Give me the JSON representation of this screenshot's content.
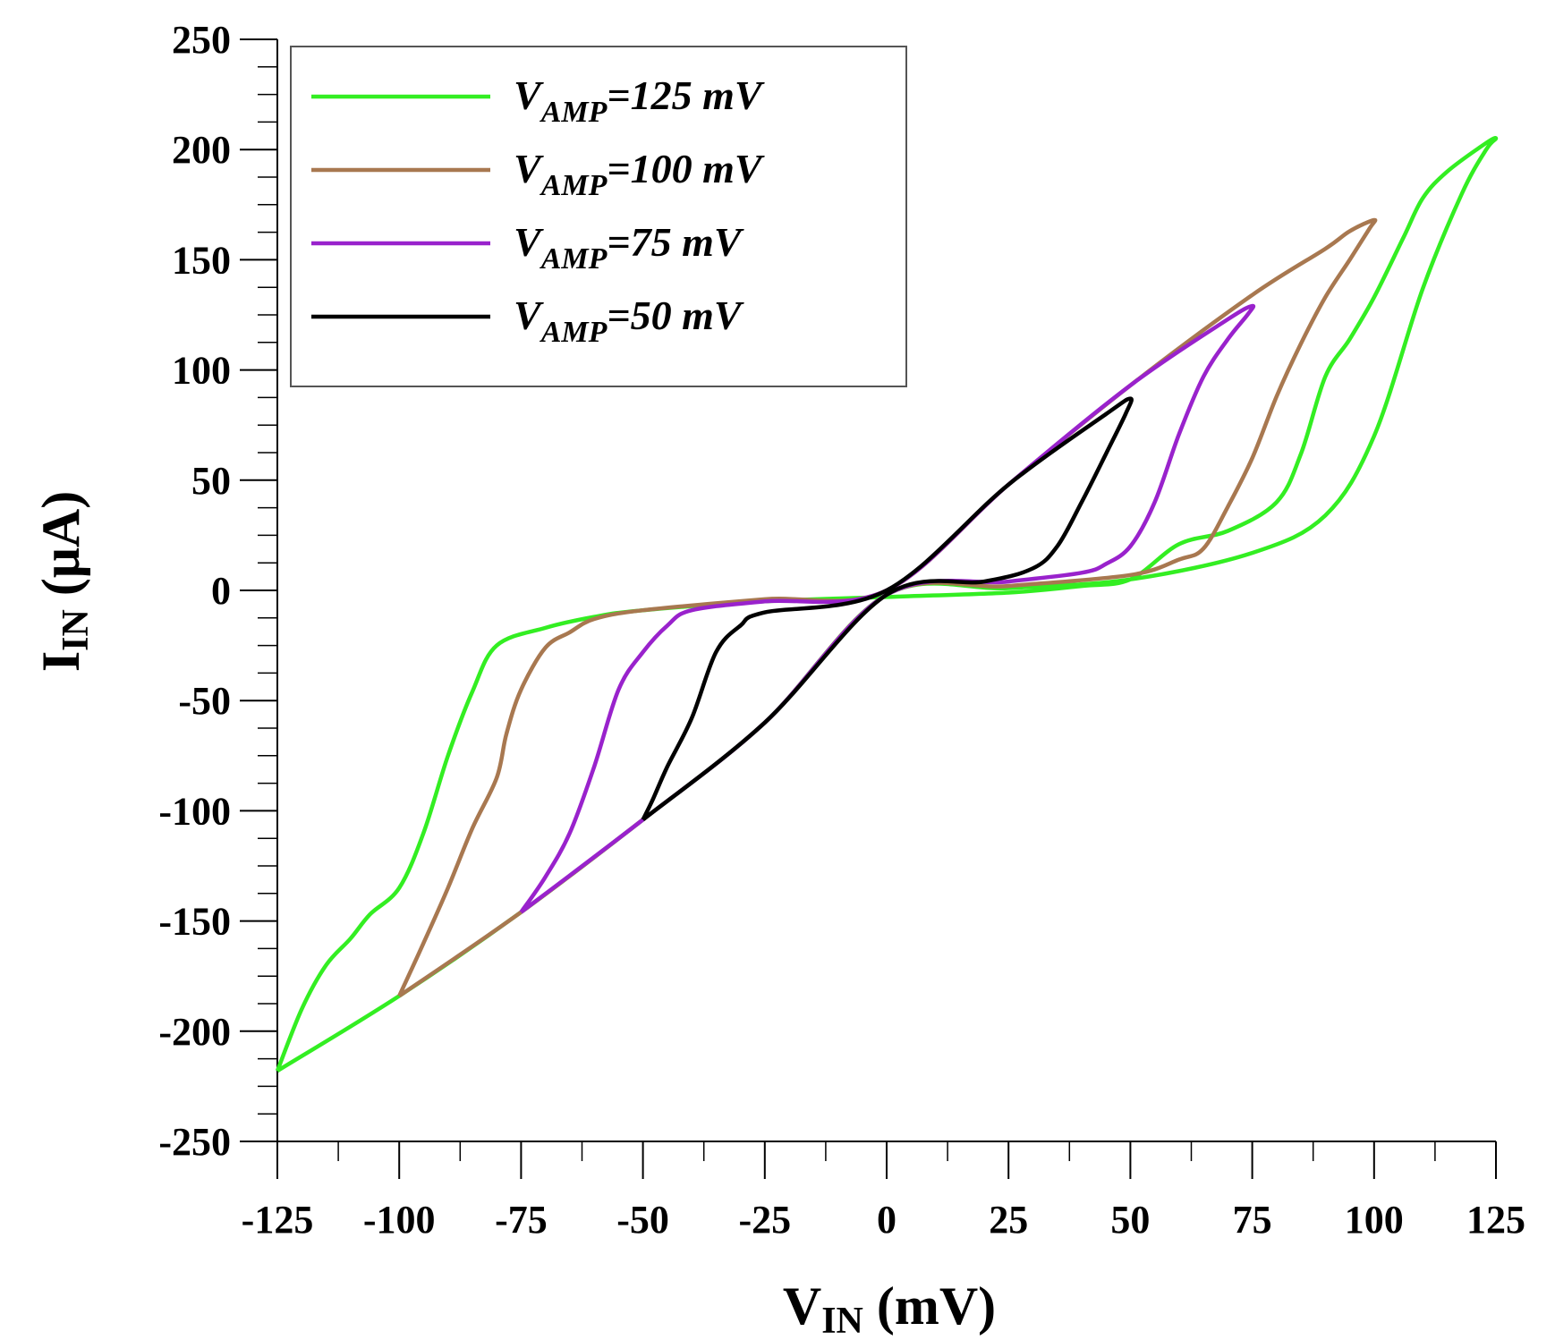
{
  "chart_data": {
    "type": "line",
    "title": "",
    "xlabel": {
      "main": "V",
      "sub": "IN",
      "unit": " (mV)"
    },
    "ylabel": {
      "main": "I",
      "sub": "IN",
      "unit": " (μA)"
    },
    "xlim": [
      -125,
      125
    ],
    "ylim": [
      -250,
      250
    ],
    "xticks": [
      -125,
      -100,
      -75,
      -50,
      -25,
      0,
      25,
      50,
      75,
      100,
      125
    ],
    "xtick_labels": [
      "-125",
      "-100",
      "-75",
      "-50",
      "-25",
      "0",
      "25",
      "50",
      "75",
      "100",
      "125"
    ],
    "yticks": [
      -250,
      -200,
      -150,
      -100,
      -50,
      0,
      50,
      100,
      150,
      200,
      250
    ],
    "ytick_labels": [
      "-250",
      "-200",
      "-150",
      "-100",
      "-50",
      "0",
      "50",
      "100",
      "150",
      "200",
      "250"
    ],
    "grid": false,
    "legend_position": "top-left",
    "series": [
      {
        "name": "V_AMP=125 mV",
        "label_main": "V",
        "label_sub": "AMP",
        "label_rest": "=125 mV",
        "color": "#33ee22",
        "x": [
          -125,
          -100,
          -75,
          -50,
          -25,
          0,
          25,
          50,
          75,
          90,
          100,
          110,
          118,
          123,
          125,
          123,
          115,
          110,
          106,
          100,
          95,
          90,
          85,
          80,
          70,
          60,
          50,
          40,
          25,
          0,
          -25,
          -50,
          -60,
          -70,
          -80,
          -85,
          -90,
          -95,
          -100,
          -106,
          -110,
          -115,
          -120,
          -125
        ],
        "y": [
          -218,
          -184,
          -146,
          -104,
          -60,
          -2,
          1,
          5,
          17,
          34,
          70,
          137,
          180,
          200,
          205,
          203,
          190,
          178,
          160,
          133,
          114,
          97,
          62,
          40,
          27,
          21,
          5,
          2,
          -1,
          -3,
          -5,
          -9,
          -12,
          -17,
          -25,
          -46,
          -75,
          -110,
          -135,
          -147,
          -158,
          -170,
          -190,
          -218
        ]
      },
      {
        "name": "V_AMP=100 mV",
        "label_main": "V",
        "label_sub": "AMP",
        "label_rest": "=100 mV",
        "color": "#a87850",
        "x": [
          -100,
          -75,
          -50,
          -25,
          0,
          25,
          50,
          60,
          65,
          70,
          75,
          80,
          85,
          90,
          95,
          99,
          100,
          95,
          90,
          75,
          50,
          25,
          0,
          -25,
          -50,
          -60,
          -65,
          -70,
          -75,
          -78,
          -80,
          -85,
          -90,
          -95,
          -100
        ],
        "y": [
          -184,
          -146,
          -104,
          -60,
          -2,
          2,
          7,
          14,
          19,
          38,
          60,
          88,
          112,
          133,
          150,
          164,
          168,
          163,
          155,
          134,
          93,
          48,
          0,
          -4,
          -9,
          -13,
          -19,
          -26,
          -45,
          -65,
          -85,
          -108,
          -135,
          -160,
          -184
        ]
      },
      {
        "name": "V_AMP=75 mV",
        "label_main": "V",
        "label_sub": "AMP",
        "label_rest": "=75 mV",
        "color": "#9922cc",
        "x": [
          -75,
          -50,
          -25,
          0,
          25,
          40,
          45,
          50,
          55,
          60,
          65,
          70,
          74,
          75,
          70,
          50,
          25,
          0,
          -25,
          -40,
          -45,
          -50,
          -55,
          -60,
          -65,
          -70,
          -75
        ],
        "y": [
          -146,
          -104,
          -60,
          -2,
          4,
          8,
          12,
          20,
          40,
          71,
          97,
          114,
          125,
          129,
          123,
          93,
          48,
          0,
          -5,
          -9,
          -16,
          -28,
          -45,
          -80,
          -110,
          -130,
          -146
        ]
      },
      {
        "name": "V_AMP=50 mV",
        "label_main": "V",
        "label_sub": "AMP",
        "label_rest": "=50 mV",
        "color": "#000000",
        "x": [
          -50,
          -25,
          0,
          20,
          30,
          35,
          40,
          45,
          49,
          50,
          45,
          25,
          0,
          -25,
          -30,
          -35,
          -40,
          -45,
          -48,
          -50
        ],
        "y": [
          -104,
          -60,
          -2,
          4,
          10,
          20,
          40,
          62,
          80,
          87,
          80,
          48,
          0,
          -10,
          -16,
          -28,
          -58,
          -80,
          -95,
          -104
        ]
      }
    ]
  }
}
